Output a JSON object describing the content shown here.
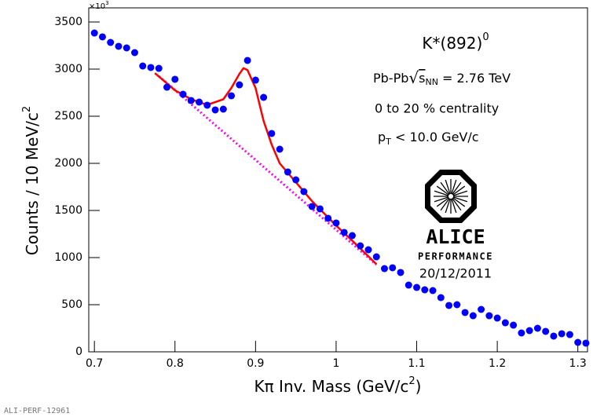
{
  "chart_data": {
    "type": "scatter",
    "multiplier": [
      "×10",
      "3"
    ],
    "y_label": [
      "Counts / 10 MeV/c",
      "2"
    ],
    "x_label": [
      "Kπ Inv. Mass (GeV/c",
      "2",
      ")"
    ],
    "annotations": {
      "particle": [
        "K*(892)",
        "0"
      ],
      "system": [
        "Pb-Pb",
        "√",
        "s",
        "NN",
        " = 2.76 TeV"
      ],
      "centrality": "0 to 20 % centrality",
      "pt": [
        "p",
        "T",
        " < 10.0 GeV/c"
      ],
      "logo": "ALICE",
      "performance": "PERFORMANCE",
      "date": "20/12/2011"
    },
    "figure_id": "ALI-PERF-12961",
    "xlim": [
      0.693,
      1.312
    ],
    "ylim": [
      0,
      3650
    ],
    "xticks": [
      0.7,
      0.8,
      0.9,
      1,
      1.1,
      1.2,
      1.3
    ],
    "yticks": [
      0,
      500,
      1000,
      1500,
      2000,
      2500,
      3000,
      3500
    ],
    "series": [
      {
        "style": "markers",
        "color": "#0000ff",
        "x": [
          0.7,
          0.71,
          0.72,
          0.73,
          0.74,
          0.75,
          0.76,
          0.77,
          0.78,
          0.79,
          0.8,
          0.81,
          0.82,
          0.83,
          0.84,
          0.85,
          0.86,
          0.87,
          0.88,
          0.89,
          0.9,
          0.91,
          0.92,
          0.93,
          0.94,
          0.95,
          0.96,
          0.97,
          0.98,
          0.99,
          1.0,
          1.01,
          1.02,
          1.03,
          1.04,
          1.05,
          1.06,
          1.07,
          1.08,
          1.09,
          1.1,
          1.11,
          1.12,
          1.13,
          1.14,
          1.15,
          1.16,
          1.17,
          1.18,
          1.19,
          1.2,
          1.21,
          1.22,
          1.23,
          1.24,
          1.25,
          1.26,
          1.27,
          1.28,
          1.29,
          1.3,
          1.31
        ],
        "values": [
          3383,
          3342,
          3283,
          3242,
          3225,
          3175,
          3033,
          3017,
          3008,
          2808,
          2892,
          2733,
          2667,
          2650,
          2617,
          2567,
          2575,
          2717,
          2833,
          3092,
          2883,
          2700,
          2317,
          2150,
          1908,
          1825,
          1700,
          1542,
          1517,
          1417,
          1367,
          1267,
          1233,
          1125,
          1083,
          1008,
          883,
          892,
          842,
          708,
          683,
          658,
          650,
          575,
          492,
          500,
          417,
          383,
          450,
          383,
          358,
          308,
          283,
          200,
          225,
          250,
          217,
          167,
          192,
          183,
          100,
          92
        ]
      },
      {
        "style": "line",
        "color": "#ff0000",
        "x": [
          0.775,
          0.8,
          0.82,
          0.84,
          0.86,
          0.87,
          0.88,
          0.885,
          0.89,
          0.9,
          0.91,
          0.92,
          0.93,
          0.95,
          0.97,
          1.0,
          1.02,
          1.05
        ],
        "values": [
          2958,
          2775,
          2680,
          2620,
          2680,
          2800,
          2950,
          3010,
          2990,
          2800,
          2450,
          2200,
          2000,
          1800,
          1600,
          1340,
          1180,
          930
        ]
      },
      {
        "style": "dotted",
        "color": "#ff00ff",
        "x": [
          0.78,
          1.05
        ],
        "values": [
          2925,
          925
        ]
      }
    ]
  }
}
